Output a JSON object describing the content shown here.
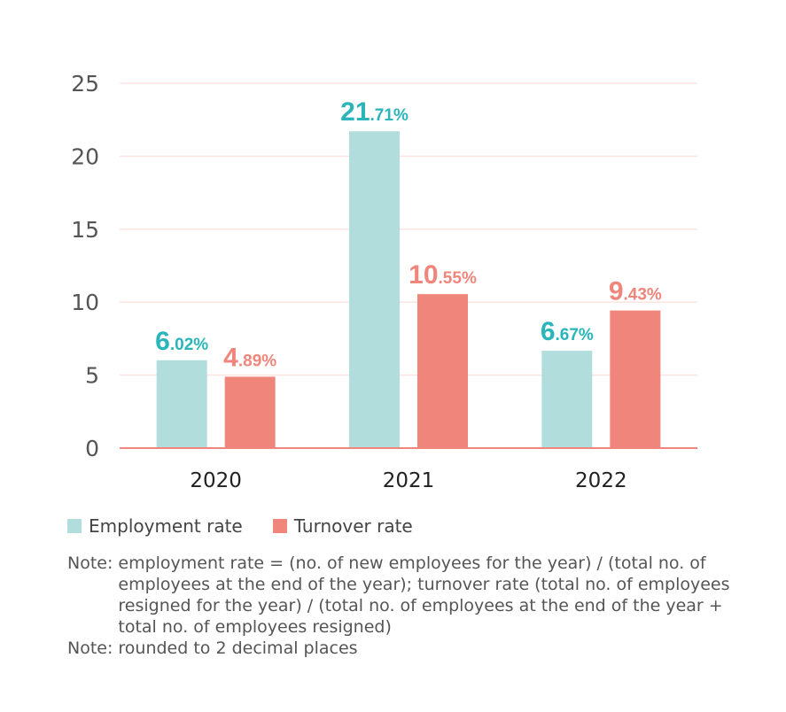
{
  "chart_data": {
    "type": "bar",
    "categories": [
      "2020",
      "2021",
      "2022"
    ],
    "series": [
      {
        "name": "Employment rate",
        "values": [
          6.02,
          21.71,
          6.67
        ],
        "color": "#b2dddd",
        "label_color": "#29b5b9"
      },
      {
        "name": "Turnover rate",
        "values": [
          4.89,
          10.55,
          9.43
        ],
        "color": "#f0857c",
        "label_color": "#f0857c"
      }
    ],
    "value_suffix": "%",
    "yticks": [
      0,
      5,
      10,
      15,
      20,
      25
    ],
    "ylim": [
      0,
      25
    ],
    "grid": true,
    "legend": "bottom-left",
    "xlabel": "",
    "ylabel": "",
    "title": ""
  },
  "notes": [
    {
      "label": "Note:",
      "text": "employment rate = (no. of new employees for the year) / (total no. of employees at the end of the year);  turnover rate (total no. of employees resigned for the year) / (total no. of employees at the end of the year  + total no. of employees resigned)"
    },
    {
      "label": "Note:",
      "text": "rounded to 2 decimal places"
    }
  ]
}
